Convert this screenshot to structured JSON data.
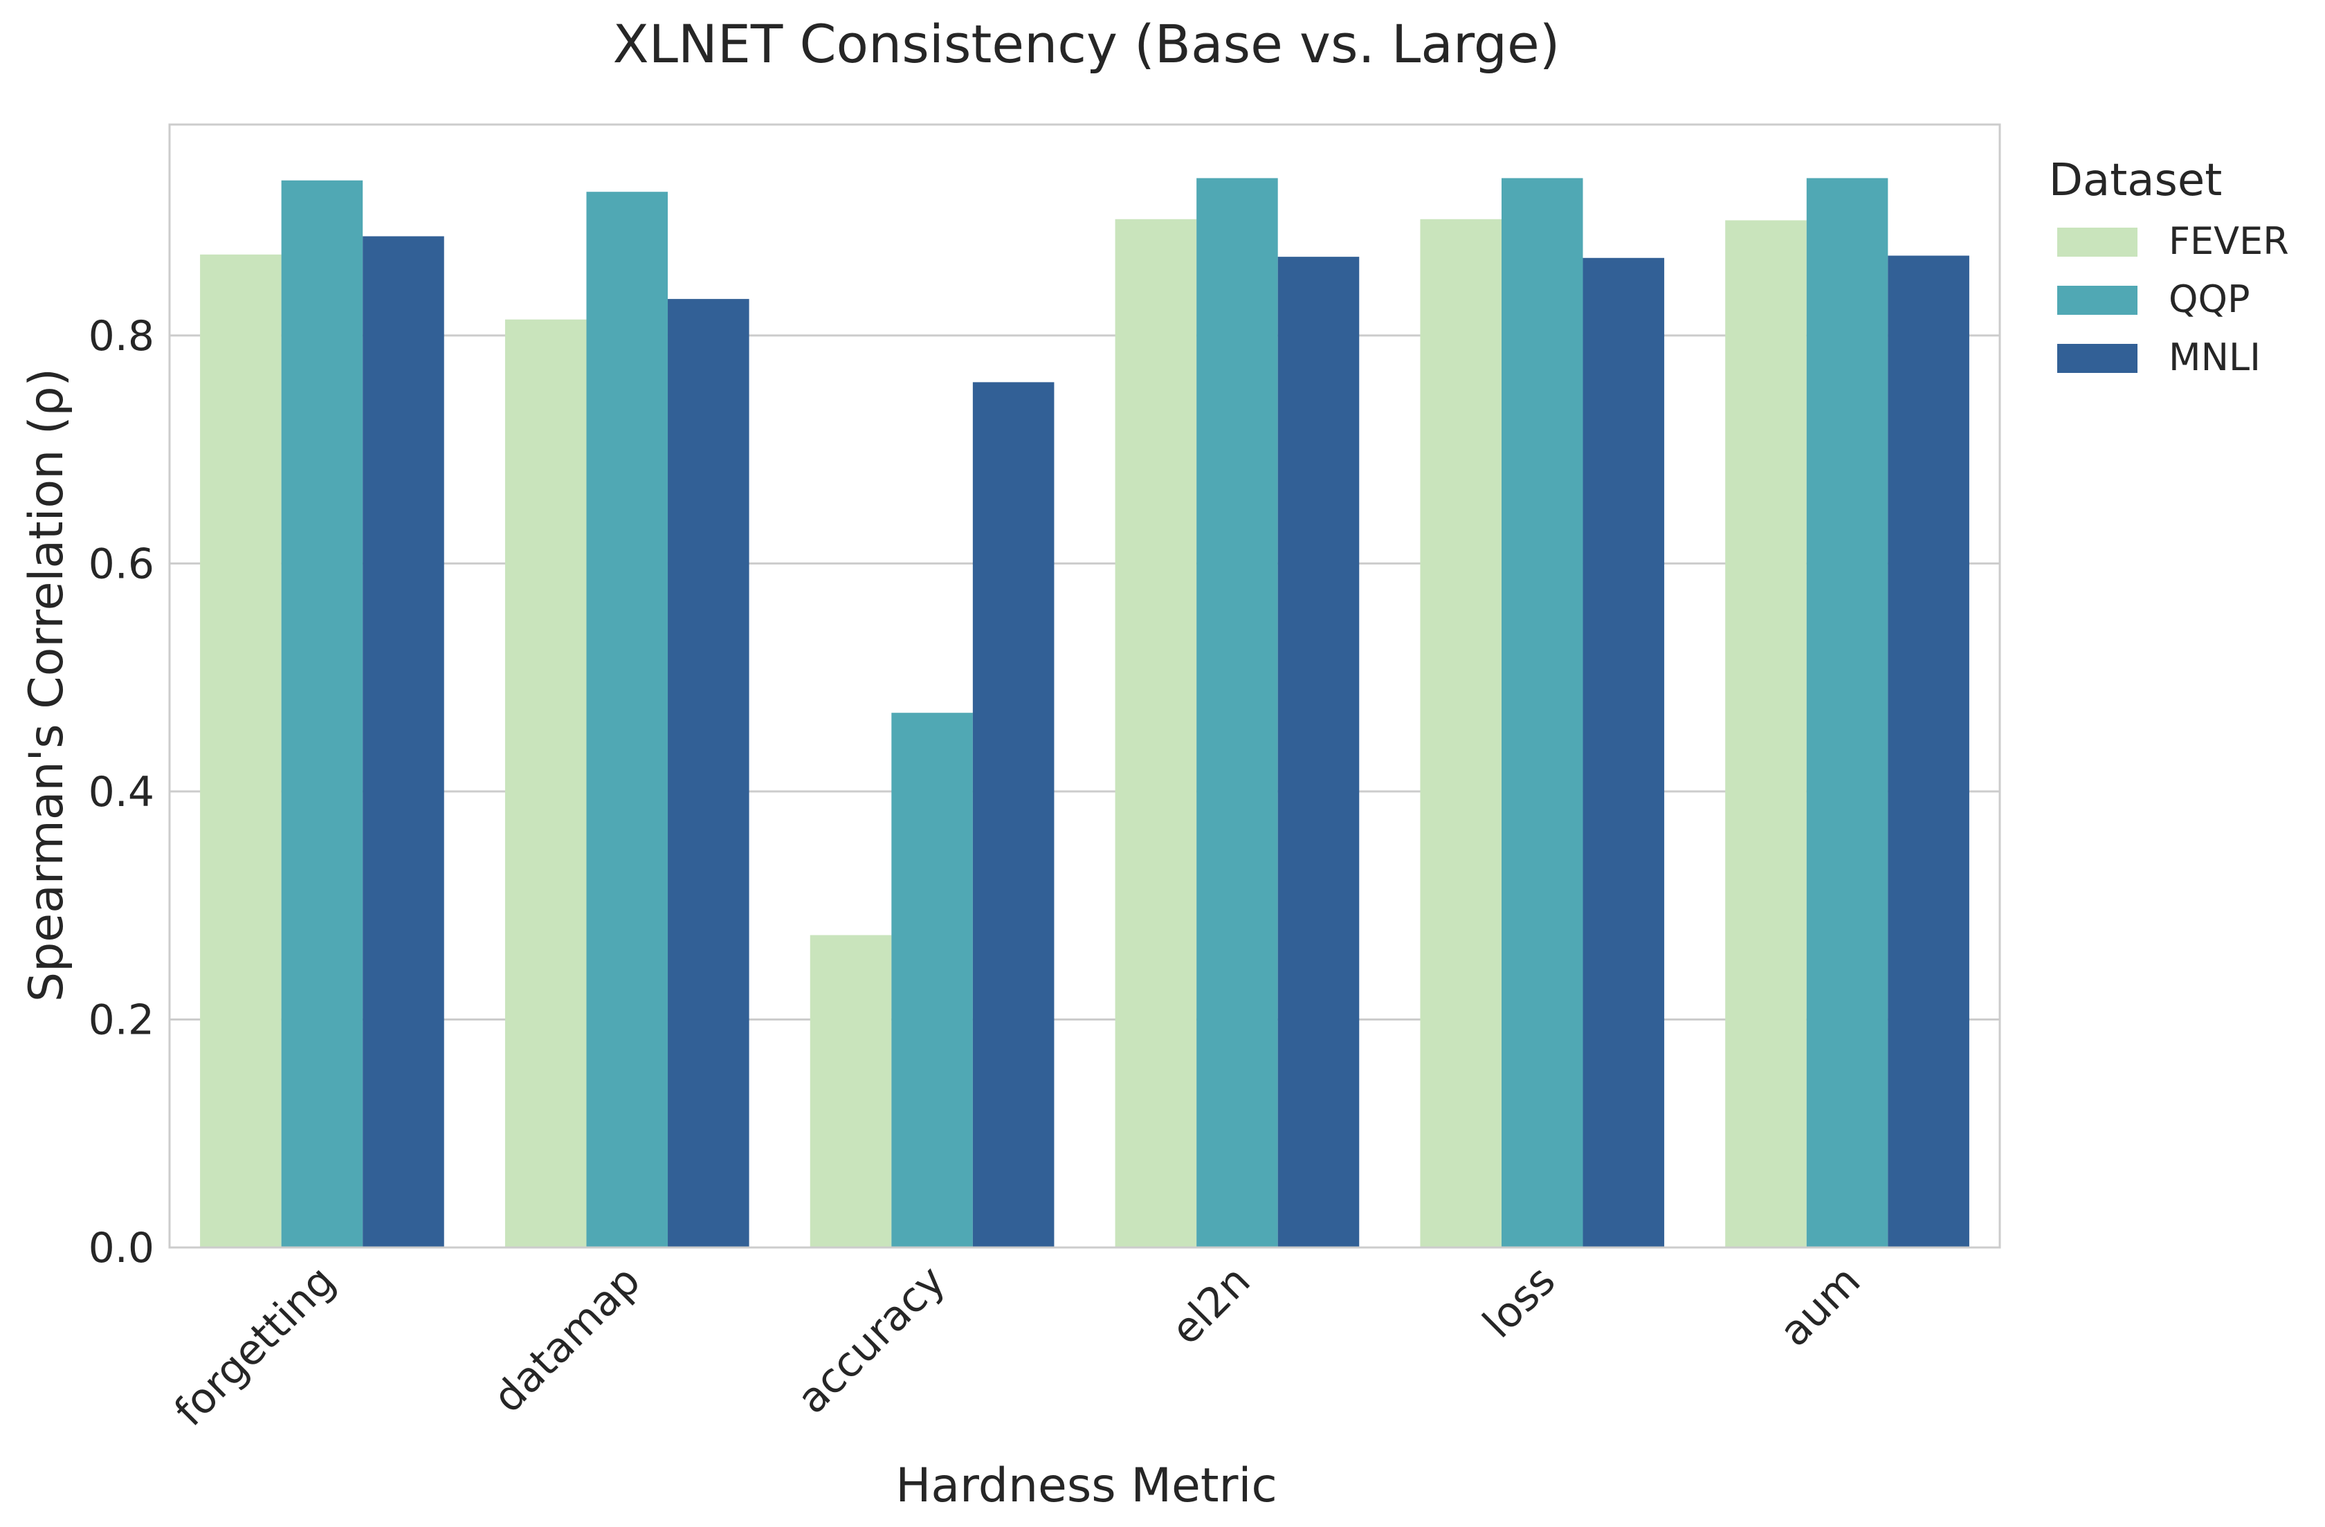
{
  "chart_data": {
    "type": "bar",
    "title": "XLNET Consistency (Base vs. Large)",
    "xlabel": "Hardness Metric",
    "ylabel": "Spearman's Correlation (ρ)",
    "ylim": [
      0,
      0.985
    ],
    "yticks": [
      0.0,
      0.2,
      0.4,
      0.6,
      0.8
    ],
    "ytick_labels": [
      "0.0",
      "0.2",
      "0.4",
      "0.6",
      "0.8"
    ],
    "grid": "horizontal",
    "categories": [
      "forgetting",
      "datamap",
      "accuracy",
      "el2n",
      "loss",
      "aum"
    ],
    "legend": {
      "title": "Dataset",
      "placement": "outside-right"
    },
    "series": [
      {
        "name": "FEVER",
        "color": "#c9e4bc",
        "values": [
          0.871,
          0.814,
          0.274,
          0.902,
          0.902,
          0.901
        ]
      },
      {
        "name": "QQP",
        "color": "#50a8b4",
        "values": [
          0.936,
          0.926,
          0.469,
          0.938,
          0.938,
          0.938
        ]
      },
      {
        "name": "MNLI",
        "color": "#326096",
        "values": [
          0.887,
          0.832,
          0.759,
          0.869,
          0.868,
          0.87
        ]
      }
    ]
  }
}
